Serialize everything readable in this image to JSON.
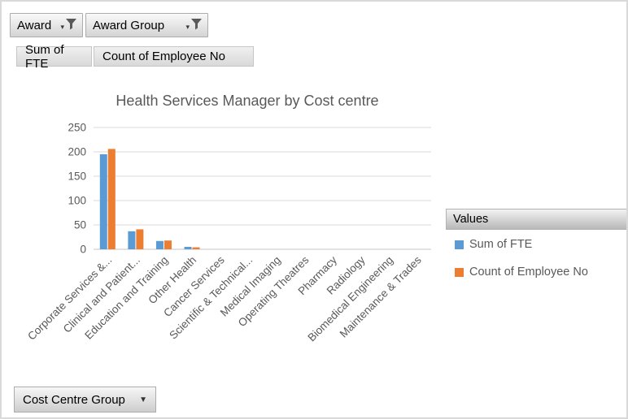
{
  "window": {
    "background": "#FFFFFF",
    "border_color": "#D9D9D9"
  },
  "icons": {
    "dropdown_arrow": "▾",
    "solid_dropdown_arrow": "▼",
    "filter_funnel": "funnel-shape"
  },
  "filter_buttons": [
    {
      "label": "Award"
    },
    {
      "label": "Award Group"
    }
  ],
  "value_field_buttons": [
    {
      "label": "Sum of FTE"
    },
    {
      "label": "Count of Employee No"
    }
  ],
  "axis_field_button": {
    "label": "Cost Centre Group"
  },
  "legend": {
    "header": "Values",
    "items": [
      {
        "label": "Sum of FTE",
        "color": "#5B9BD5"
      },
      {
        "label": "Count of Employee No",
        "color": "#ED7D31"
      }
    ]
  },
  "chart_data": {
    "type": "bar",
    "title": "Health Services Manager by Cost centre",
    "categories": [
      "Corporate Services &...",
      "Clinical and Patient...",
      "Education and Training",
      "Other Health",
      "Cancer Services",
      "Scientific & Technical...",
      "Medical Imaging",
      "Operating Theatres",
      "Pharmacy",
      "Radiology",
      "Biomedical Engineering",
      "Maintenance & Trades"
    ],
    "series": [
      {
        "name": "Sum of FTE",
        "color": "#5B9BD5",
        "values": [
          195,
          37,
          17,
          5,
          0,
          0,
          0,
          0,
          0,
          0,
          0,
          0
        ]
      },
      {
        "name": "Count of Employee No",
        "color": "#ED7D31",
        "values": [
          206,
          41,
          18,
          4,
          0,
          0,
          0,
          0,
          0,
          0,
          0,
          0
        ]
      }
    ],
    "xlabel": "",
    "ylabel": "",
    "ylim": [
      0,
      250
    ],
    "yticks": [
      0,
      50,
      100,
      150,
      200,
      250
    ],
    "grid": true,
    "grid_color": "#D9D9D9",
    "axis_text_color": "#595959",
    "legend_position": "right",
    "x_label_rotation_deg": -45
  }
}
